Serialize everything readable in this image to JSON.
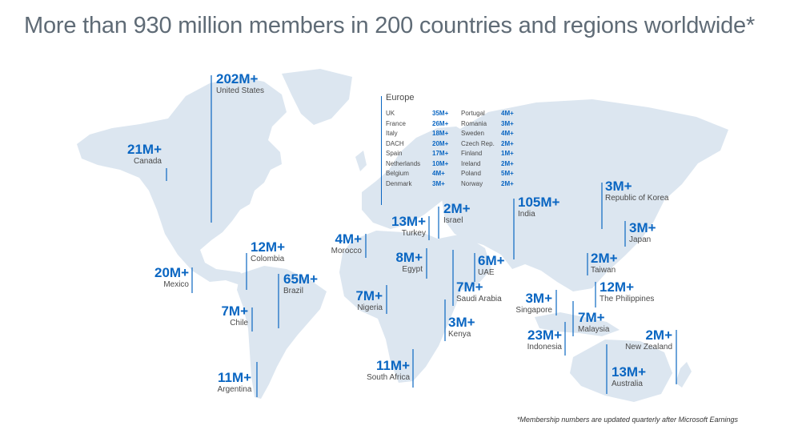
{
  "headline": "More than 930 million members in 200 countries and regions worldwide*",
  "footnote": "*Membership numbers are updated quarterly after Microsoft Earnings",
  "colors": {
    "accent": "#0a66c2",
    "land": "#dce6f0",
    "text": "#4a4a4a",
    "headline": "#5f6b76"
  },
  "countries": [
    {
      "id": "united-states",
      "count": "202M+",
      "name": "United States"
    },
    {
      "id": "canada",
      "count": "21M+",
      "name": "Canada"
    },
    {
      "id": "mexico",
      "count": "20M+",
      "name": "Mexico"
    },
    {
      "id": "colombia",
      "count": "12M+",
      "name": "Colombia"
    },
    {
      "id": "brazil",
      "count": "65M+",
      "name": "Brazil"
    },
    {
      "id": "chile",
      "count": "7M+",
      "name": "Chile"
    },
    {
      "id": "argentina",
      "count": "11M+",
      "name": "Argentina"
    },
    {
      "id": "morocco",
      "count": "4M+",
      "name": "Morocco"
    },
    {
      "id": "turkey",
      "count": "13M+",
      "name": "Turkey"
    },
    {
      "id": "israel",
      "count": "2M+",
      "name": "Israel"
    },
    {
      "id": "egypt",
      "count": "8M+",
      "name": "Egypt"
    },
    {
      "id": "nigeria",
      "count": "7M+",
      "name": "Nigeria"
    },
    {
      "id": "saudi-arabia",
      "count": "7M+",
      "name": "Saudi Arabia"
    },
    {
      "id": "uae",
      "count": "6M+",
      "name": "UAE"
    },
    {
      "id": "kenya",
      "count": "3M+",
      "name": "Kenya"
    },
    {
      "id": "south-africa",
      "count": "11M+",
      "name": "South Africa"
    },
    {
      "id": "india",
      "count": "105M+",
      "name": "India"
    },
    {
      "id": "korea",
      "count": "3M+",
      "name": "Republic of Korea"
    },
    {
      "id": "japan",
      "count": "3M+",
      "name": "Japan"
    },
    {
      "id": "taiwan",
      "count": "2M+",
      "name": "Taiwan"
    },
    {
      "id": "singapore",
      "count": "3M+",
      "name": "Singapore"
    },
    {
      "id": "philippines",
      "count": "12M+",
      "name": "The Philippines"
    },
    {
      "id": "malaysia",
      "count": "7M+",
      "name": "Malaysia"
    },
    {
      "id": "indonesia",
      "count": "23M+",
      "name": "Indonesia"
    },
    {
      "id": "new-zealand",
      "count": "2M+",
      "name": "New Zealand"
    },
    {
      "id": "australia",
      "count": "13M+",
      "name": "Australia"
    }
  ],
  "europe": {
    "title": "Europe",
    "left": [
      {
        "name": "UK",
        "value": "35M+"
      },
      {
        "name": "France",
        "value": "26M+"
      },
      {
        "name": "Italy",
        "value": "18M+"
      },
      {
        "name": "DACH",
        "value": "20M+"
      },
      {
        "name": "Spain",
        "value": "17M+"
      },
      {
        "name": "Netherlands",
        "value": "10M+"
      },
      {
        "name": "Belgium",
        "value": "4M+"
      },
      {
        "name": "Denmark",
        "value": "3M+"
      }
    ],
    "right": [
      {
        "name": "Portugal",
        "value": "4M+"
      },
      {
        "name": "Romania",
        "value": "3M+"
      },
      {
        "name": "Sweden",
        "value": "4M+"
      },
      {
        "name": "Czech Rep.",
        "value": "2M+"
      },
      {
        "name": "Finland",
        "value": "1M+"
      },
      {
        "name": "Ireland",
        "value": "2M+"
      },
      {
        "name": "Poland",
        "value": "5M+"
      },
      {
        "name": "Norway",
        "value": "2M+"
      }
    ]
  }
}
